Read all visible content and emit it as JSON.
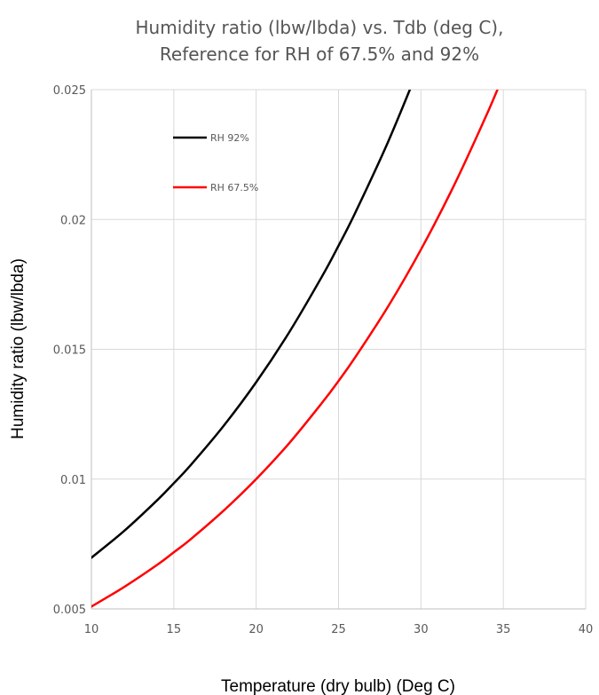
{
  "chart_data": {
    "type": "line",
    "title": "Humidity ratio (lbw/lbda) vs. Tdb (deg C),",
    "subtitle": "Reference for RH of 67.5% and 92%",
    "xlabel": "Temperature (dry bulb) (Deg C)",
    "ylabel": "Humidity ratio (lbw/lbda)",
    "xlim": [
      10,
      40
    ],
    "ylim": [
      0.005,
      0.025
    ],
    "x_ticks": [
      10,
      15,
      20,
      25,
      30,
      35,
      40
    ],
    "x_tick_labels": [
      "10",
      "15",
      "20",
      "25",
      "30",
      "35",
      "40"
    ],
    "y_ticks": [
      0.005,
      0.01,
      0.015,
      0.02,
      0.025
    ],
    "y_tick_labels": [
      "0.005",
      "0.01",
      "0.015",
      "0.02",
      "0.025"
    ],
    "grid": true,
    "legend_position": "top-left",
    "series": [
      {
        "name": "RH 92%",
        "color": "#000000",
        "x": [
          10,
          12,
          14,
          15,
          16,
          18,
          20,
          22,
          24,
          25,
          26,
          28,
          30,
          30.2
        ],
        "y": [
          0.00697,
          0.00801,
          0.00919,
          0.00984,
          0.01052,
          0.01203,
          0.01373,
          0.01565,
          0.01781,
          0.01899,
          0.02024,
          0.02298,
          0.02605,
          0.0264
        ]
      },
      {
        "name": "RH 67.5%",
        "color": "#ff0000",
        "x": [
          10,
          12,
          14,
          15,
          16,
          18,
          20,
          22,
          24,
          25,
          26,
          28,
          30,
          32,
          34,
          35,
          35.6
        ],
        "y": [
          0.00509,
          0.00585,
          0.0067,
          0.00718,
          0.00767,
          0.00877,
          0.01,
          0.01138,
          0.01294,
          0.01378,
          0.01468,
          0.01664,
          0.01884,
          0.0213,
          0.02405,
          0.02555,
          0.0265
        ]
      }
    ]
  }
}
